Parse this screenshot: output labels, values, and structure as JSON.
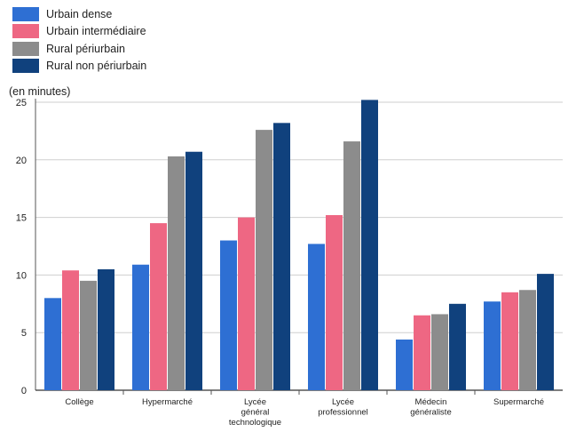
{
  "chart_data": {
    "type": "bar",
    "ylabel": "(en minutes)",
    "ylim": [
      0,
      25
    ],
    "yticks": [
      0,
      5,
      10,
      15,
      20,
      25
    ],
    "grid": true,
    "legend_position": "top-left",
    "categories": [
      [
        "Collège"
      ],
      [
        "Hypermarché"
      ],
      [
        "Lycée",
        "général",
        "technologique"
      ],
      [
        "Lycée",
        "professionnel"
      ],
      [
        "Médecin",
        "généraliste"
      ],
      [
        "Supermarché"
      ]
    ],
    "series": [
      {
        "name": "Urbain dense",
        "color": "#2e6fd3",
        "values": [
          8.0,
          10.9,
          13.0,
          12.7,
          4.4,
          7.7
        ]
      },
      {
        "name": "Urbain intermédiaire",
        "color": "#ee6783",
        "values": [
          10.4,
          14.5,
          15.0,
          15.2,
          6.5,
          8.5
        ]
      },
      {
        "name": "Rural périurbain",
        "color": "#8c8c8c",
        "values": [
          9.5,
          20.3,
          22.6,
          21.6,
          6.6,
          8.7
        ]
      },
      {
        "name": "Rural non périurbain",
        "color": "#10417d",
        "values": [
          10.5,
          20.7,
          23.2,
          25.2,
          7.5,
          10.1
        ]
      }
    ]
  }
}
